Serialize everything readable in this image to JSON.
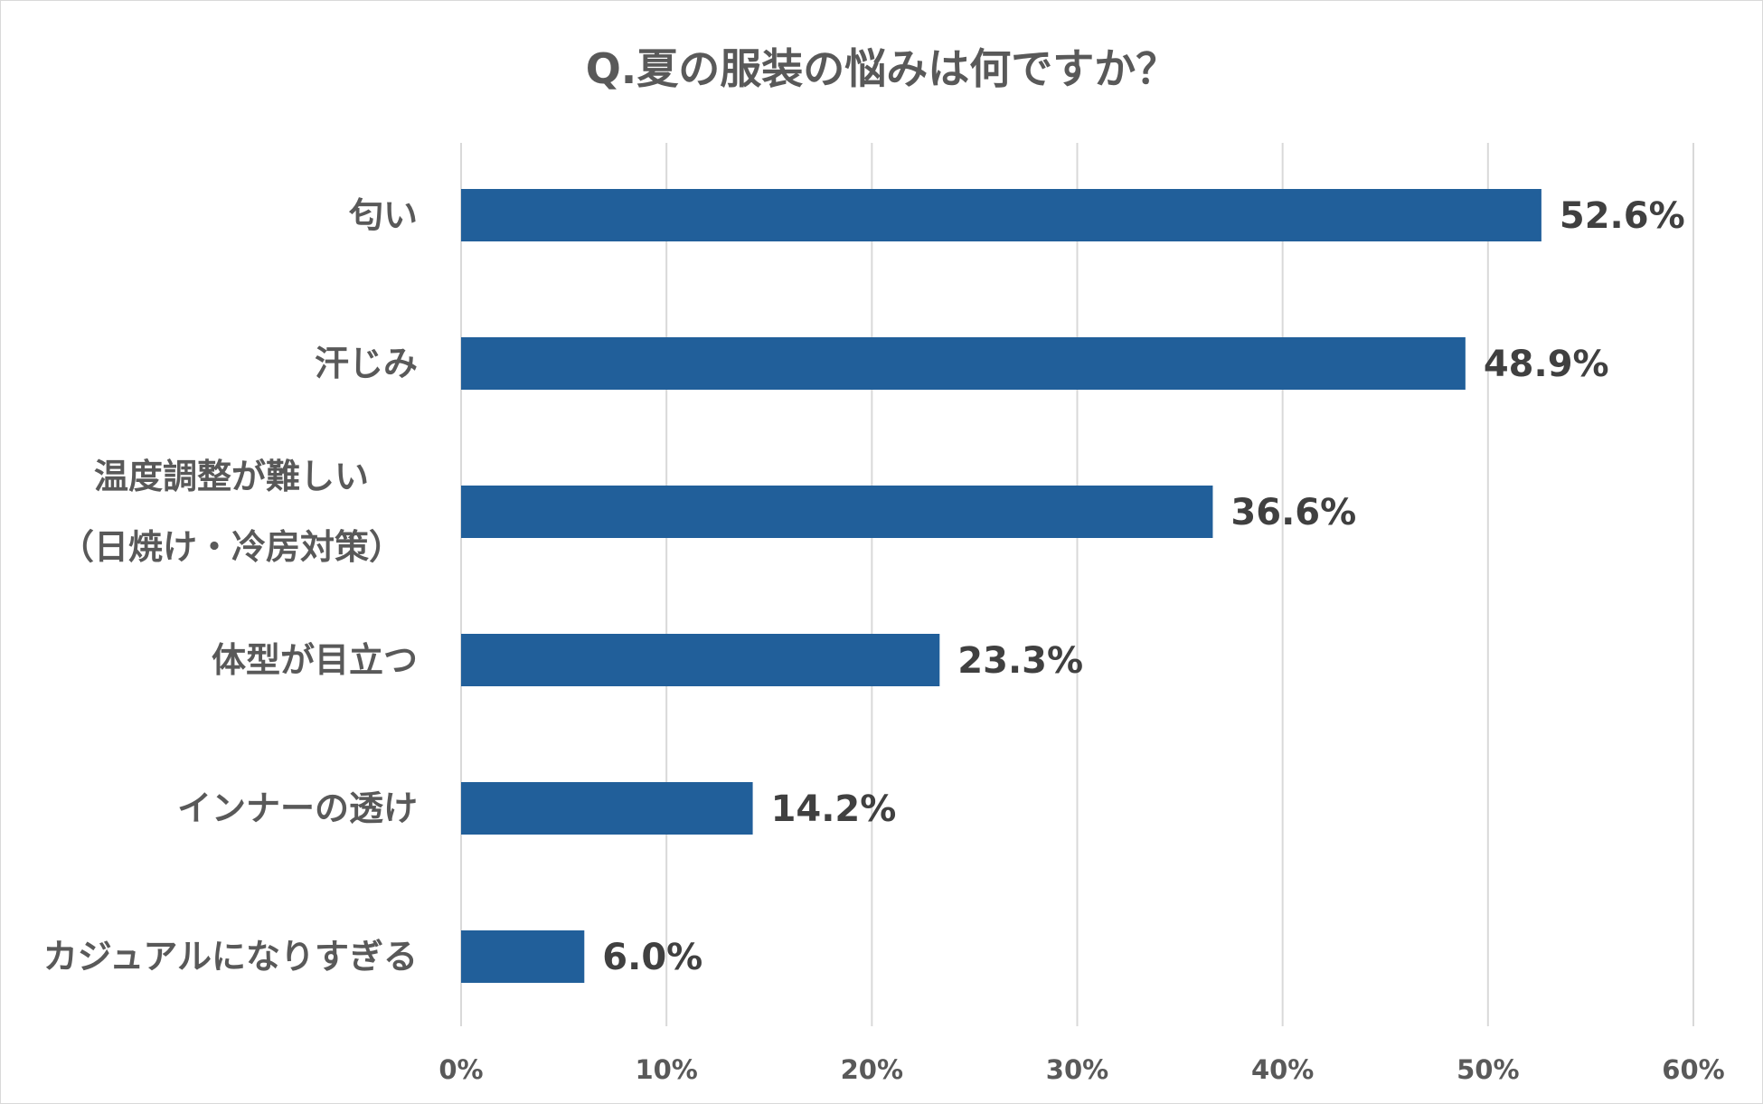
{
  "chart_data": {
    "type": "bar",
    "orientation": "horizontal",
    "title": "Q.夏の服装の悩みは何ですか？",
    "categories": [
      [
        "匂い"
      ],
      [
        "汗じみ"
      ],
      [
        "温度調整が難しい",
        "（日焼け・冷房対策）"
      ],
      [
        "体型が目立つ"
      ],
      [
        "インナーの透け"
      ],
      [
        "カジュアルになりすぎる"
      ]
    ],
    "values": [
      52.6,
      48.9,
      36.6,
      23.3,
      14.2,
      6.0
    ],
    "data_labels": [
      "52.6%",
      "48.9%",
      "36.6%",
      "23.3%",
      "14.2%",
      "6.0%"
    ],
    "xlim": [
      0,
      60
    ],
    "ticks": [
      0,
      10,
      20,
      30,
      40,
      50,
      60
    ],
    "tick_labels": [
      "0%",
      "10%",
      "20%",
      "30%",
      "40%",
      "50%",
      "60%"
    ],
    "xlabel": "",
    "ylabel": "",
    "grid": true,
    "legend": "none",
    "bar_color": "#215F9A",
    "grid_color": "#d9d9d9"
  }
}
